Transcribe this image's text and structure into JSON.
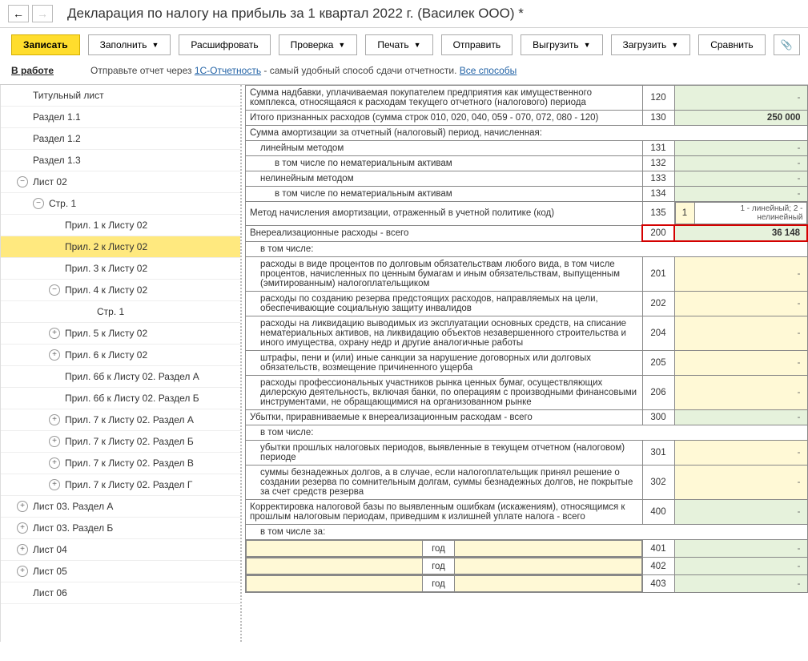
{
  "header": {
    "title": "Декларация по налогу на прибыль за 1 квартал 2022 г. (Василек ООО) *"
  },
  "toolbar": {
    "save": "Записать",
    "fill": "Заполнить",
    "decode": "Расшифровать",
    "check": "Проверка",
    "print": "Печать",
    "send": "Отправить",
    "export": "Выгрузить",
    "import": "Загрузить",
    "compare": "Сравнить"
  },
  "status": {
    "label": "В работе",
    "text1": "Отправьте отчет через ",
    "link1": "1С-Отчетность",
    "text2": " - самый удобный способ сдачи отчетности. ",
    "link2": "Все способы"
  },
  "tree": [
    {
      "label": "Титульный лист",
      "indent": 30
    },
    {
      "label": "Раздел 1.1",
      "indent": 30
    },
    {
      "label": "Раздел 1.2",
      "indent": 30
    },
    {
      "label": "Раздел 1.3",
      "indent": 30
    },
    {
      "label": "Лист 02",
      "indent": 10,
      "toggle": "−"
    },
    {
      "label": "Стр. 1",
      "indent": 30,
      "toggle": "−"
    },
    {
      "label": "Прил. 1 к Листу 02",
      "indent": 70
    },
    {
      "label": "Прил. 2 к Листу 02",
      "indent": 70,
      "sel": true
    },
    {
      "label": "Прил. 3 к Листу 02",
      "indent": 70
    },
    {
      "label": "Прил. 4 к Листу 02",
      "indent": 50,
      "toggle": "−"
    },
    {
      "label": "Стр. 1",
      "indent": 110
    },
    {
      "label": "Прил. 5 к Листу 02",
      "indent": 50,
      "toggle": "+"
    },
    {
      "label": "Прил. 6 к Листу 02",
      "indent": 50,
      "toggle": "+"
    },
    {
      "label": "Прил. 6б к Листу 02. Раздел А",
      "indent": 70
    },
    {
      "label": "Прил. 6б к Листу 02. Раздел Б",
      "indent": 70
    },
    {
      "label": "Прил. 7 к Листу 02. Раздел А",
      "indent": 50,
      "toggle": "+"
    },
    {
      "label": "Прил. 7 к Листу 02. Раздел Б",
      "indent": 50,
      "toggle": "+"
    },
    {
      "label": "Прил. 7 к Листу 02. Раздел В",
      "indent": 50,
      "toggle": "+"
    },
    {
      "label": "Прил. 7 к Листу 02. Раздел Г",
      "indent": 50,
      "toggle": "+"
    },
    {
      "label": "Лист 03. Раздел А",
      "indent": 10,
      "toggle": "+"
    },
    {
      "label": "Лист 03. Раздел Б",
      "indent": 10,
      "toggle": "+"
    },
    {
      "label": "Лист 04",
      "indent": 10,
      "toggle": "+"
    },
    {
      "label": "Лист 05",
      "indent": 10,
      "toggle": "+"
    },
    {
      "label": "Лист 06",
      "indent": 30
    }
  ],
  "rows": [
    {
      "desc": "Сумма надбавки, уплачиваемая покупателем предприятия как имущественного комплекса, относящаяся к расходам текущего отчетного (налогового) периода",
      "code": "120",
      "valClass": "val-green",
      "dash": true
    },
    {
      "desc": "Итого признанных расходов (сумма строк 010, 020, 040, 059 - 070, 072, 080 - 120)",
      "code": "130",
      "valClass": "val-green",
      "value": "250 000",
      "bold": true
    },
    {
      "desc": "Сумма амортизации за отчетный (налоговый) период, начисленная:",
      "span": true
    },
    {
      "desc": "линейным методом",
      "sub": 1,
      "code": "131",
      "valClass": "val-green",
      "dash": true
    },
    {
      "desc": "в том числе по нематериальным активам",
      "sub": 2,
      "code": "132",
      "valClass": "val-green",
      "dash": true
    },
    {
      "desc": "нелинейным методом",
      "sub": 1,
      "code": "133",
      "valClass": "val-green",
      "dash": true
    },
    {
      "desc": "в том числе по нематериальным активам",
      "sub": 2,
      "code": "134",
      "valClass": "val-green",
      "dash": true
    },
    {
      "desc": "Метод начисления амортизации, отраженный в учетной политике (код)",
      "code": "135",
      "method": true,
      "methodVal": "1",
      "methodHint": "1 - линейный; 2 - нелинейный"
    },
    {
      "desc": "Внереализационные расходы - всего",
      "code": "200",
      "valClass": "val-green",
      "value": "36 148",
      "hl": true,
      "bold": true
    },
    {
      "desc": "в том числе:",
      "span": true,
      "sub": 1
    },
    {
      "desc": "расходы в виде процентов по долговым обязательствам любого вида, в том числе процентов, начисленных по ценным бумагам и иным обязательствам, выпущенным (эмитированным) налогоплательщиком",
      "sub": 1,
      "code": "201",
      "valClass": "val-yellow",
      "dash": true
    },
    {
      "desc": "расходы по созданию резерва предстоящих расходов, направляемых на цели, обеспечивающие социальную защиту инвалидов",
      "sub": 1,
      "code": "202",
      "valClass": "val-yellow",
      "dash": true
    },
    {
      "desc": "расходы на ликвидацию выводимых из эксплуатации основных средств, на списание нематериальных активов, на ликвидацию объектов незавершенного строительства и иного имущества, охрану недр и другие аналогичные работы",
      "sub": 1,
      "code": "204",
      "valClass": "val-yellow",
      "dash": true
    },
    {
      "desc": "штрафы, пени и (или) иные санкции за нарушение договорных или долговых обязательств, возмещение причиненного ущерба",
      "sub": 1,
      "code": "205",
      "valClass": "val-yellow",
      "dash": true
    },
    {
      "desc": "расходы профессиональных участников рынка ценных бумаг, осуществляющих дилерскую деятельность, включая банки, по операциям с производными финансовыми инструментами, не обращающимися на организованном рынке",
      "sub": 1,
      "code": "206",
      "valClass": "val-yellow",
      "dash": true
    },
    {
      "desc": "Убытки, приравниваемые к внереализационным расходам - всего",
      "code": "300",
      "valClass": "val-green",
      "dash": true
    },
    {
      "desc": "в том числе:",
      "span": true,
      "sub": 1
    },
    {
      "desc": "убытки прошлых налоговых периодов, выявленные в текущем отчетном (налоговом) периоде",
      "sub": 1,
      "code": "301",
      "valClass": "val-yellow",
      "dash": true
    },
    {
      "desc": "суммы безнадежных долгов, а в случае, если налогоплательщик принял решение о создании резерва по сомнительным долгам, суммы безнадежных долгов, не покрытые за счет средств резерва",
      "sub": 1,
      "code": "302",
      "valClass": "val-yellow",
      "dash": true
    },
    {
      "desc": "Корректировка налоговой базы по выявленным ошибкам (искажениям), относящимся к прошлым налоговым периодам, приведшим к излишней уплате налога - всего",
      "code": "400",
      "valClass": "val-green",
      "dash": true
    },
    {
      "desc": "в том числе за:",
      "span": true,
      "sub": 1
    }
  ],
  "yearRows": [
    {
      "code": "401"
    },
    {
      "code": "402"
    },
    {
      "code": "403"
    }
  ],
  "yearLabel": "год"
}
